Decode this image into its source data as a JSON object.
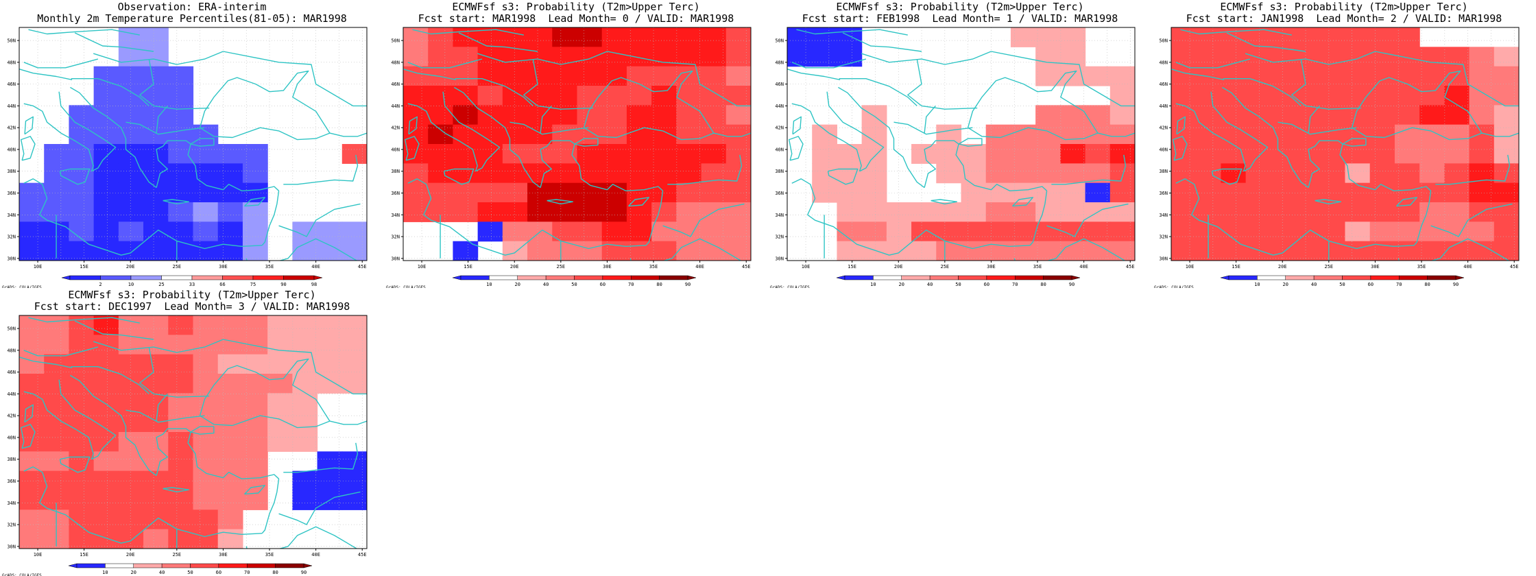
{
  "axes": {
    "lon_ticks": [
      "10E",
      "15E",
      "20E",
      "25E",
      "30E",
      "35E",
      "40E",
      "45E"
    ],
    "lat_ticks": [
      "30N",
      "32N",
      "34N",
      "36N",
      "38N",
      "40N",
      "42N",
      "44N",
      "46N",
      "48N",
      "50N"
    ]
  },
  "colors": {
    "coast": "#2ec4c4",
    "grid_line": "#bbbbbb",
    "obs_scale": [
      "#2828ff",
      "#5a5aff",
      "#9a9aff",
      "#ffffff",
      "#ff9a9a",
      "#ff5050",
      "#ff2020",
      "#cc0000"
    ],
    "prob_scale": [
      "#2828ff",
      "#ffffff",
      "#ffaaaa",
      "#ff7a7a",
      "#ff4a4a",
      "#ff1a1a",
      "#cc0000",
      "#8a0000"
    ]
  },
  "colorbars": {
    "obs": [
      "2",
      "10",
      "25",
      "33",
      "66",
      "75",
      "90",
      "98"
    ],
    "prob": [
      "10",
      "20",
      "40",
      "50",
      "60",
      "70",
      "80",
      "90"
    ]
  },
  "credit": "GrADS: COLA/IGES",
  "panels": [
    {
      "title_line1": "Observation: ERA-interim",
      "title_line2": "Monthly 2m Temperature Percentiles(81-05): MAR1998",
      "scale": "obs",
      "grid": [
        "33332233333333",
        "33332233333333",
        "33311113333333",
        "33311113333333",
        "33111113333333",
        "33111111333333",
        "31100011113335",
        "31100000013333",
        "11100000003333",
        "11100012123333",
        "00101001023222",
        "00000000023222"
      ]
    },
    {
      "title_line1": "ECMWFsf s3: Probability (T2m>Upper Terc)",
      "title_line2": "Fcst start: MAR1998  Lead Month= 0 / VALID: MAR1998",
      "scale": "prob",
      "grid": [
        "34555566555554",
        "34455555555554",
        "44455555544443",
        "55545554445444",
        "55655554455443",
        "56555544455444",
        "55554445555554",
        "45555555555544",
        "44444666655444",
        "44455666654333",
        "11103344553333",
        "11012333444333"
      ]
    },
    {
      "title_line1": "ECMWFsf s3: Probability (T2m>Upper Terc)",
      "title_line2": "Fcst start: FEB1998  Lead Month= 1 / VALID: MAR1998",
      "scale": "prob",
      "grid": [
        "00011111122211",
        "00011111112211",
        "11111111112222",
        "11111111111112",
        "11121111113332",
        "12121121333333",
        "12221222333545",
        "12221122333334",
        "12221112222204",
        "11222222332222",
        "11332444444444",
        "11222233333333"
      ]
    },
    {
      "title_line1": "ECMWFsf s3: Probability (T2m>Upper Terc)",
      "title_line2": "Fcst start: JAN1998  Lead Month= 2 / VALID: MAR1998",
      "scale": "prob",
      "grid": [
        "44444444441111",
        "44444444444432",
        "44444444444433",
        "44444444444533",
        "44444444445532",
        "44444444433342",
        "44444444433342",
        "44544442443454",
        "44444444444455",
        "44444444443344",
        "44444442333334",
        "44444444444444"
      ]
    },
    {
      "title_line1": "ECMWFsf s3: Probability (T2m>Upper Terc)",
      "title_line2": "Fcst start: DEC1997  Lead Month= 3 / VALID: MAR1998",
      "scale": "prob",
      "grid": [
        "33453343332222",
        "33443333332222",
        "34444443222222",
        "44444443333222",
        "44444433332211",
        "44444433332211",
        "44443343332211",
        "33433343331100",
        "44444443331000",
        "44444443331000",
        "33444444311111",
        "33444344211111"
      ]
    }
  ]
}
